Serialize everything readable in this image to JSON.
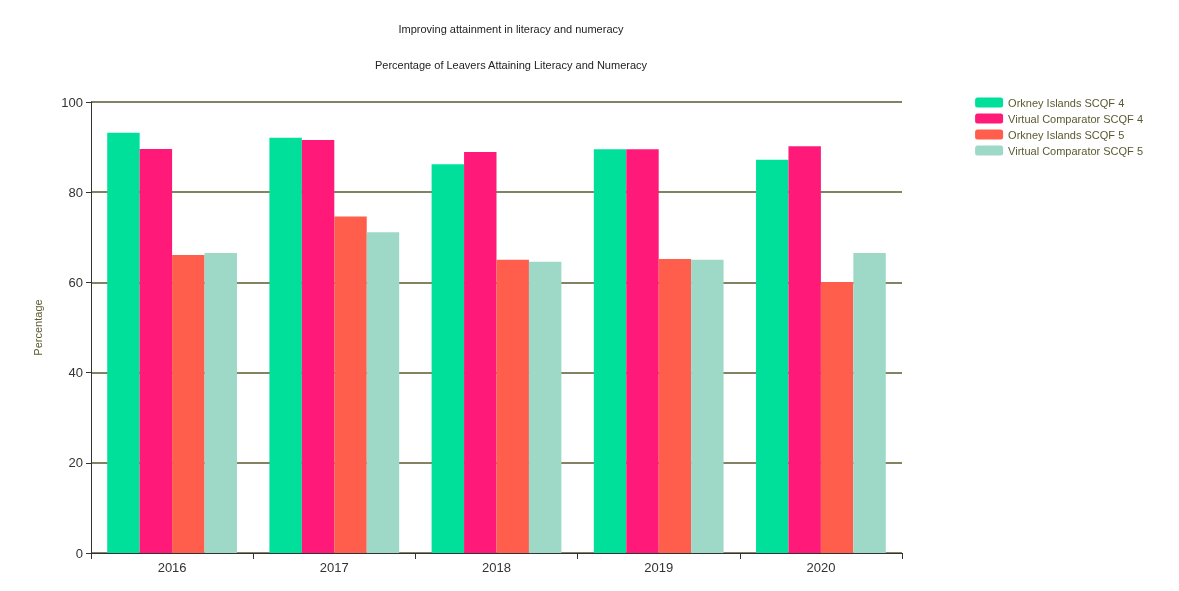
{
  "chart_data": {
    "type": "bar",
    "title": "Improving attainment in literacy and numeracy",
    "subtitle": "Percentage of Leavers Attaining Literacy and Numeracy",
    "ylabel": "Percentage",
    "categories": [
      "2016",
      "2017",
      "2018",
      "2019",
      "2020"
    ],
    "series": [
      {
        "name": "Orkney Islands SCQF 4",
        "color": "#00e09a",
        "values": [
          93.2,
          92.1,
          86.2,
          89.5,
          87.2
        ]
      },
      {
        "name": "Virtual Comparator SCQF 4",
        "color": "#ff1a7a",
        "values": [
          89.6,
          91.6,
          88.9,
          89.5,
          90.2
        ]
      },
      {
        "name": "Orkney Islands SCQF 5",
        "color": "#ff5e4d",
        "values": [
          66.1,
          74.6,
          65.0,
          65.2,
          60.1
        ]
      },
      {
        "name": "Virtual Comparator SCQF 5",
        "color": "#9ed9c8",
        "values": [
          66.5,
          71.1,
          64.6,
          65.0,
          66.5
        ]
      }
    ],
    "ylim": [
      0,
      100
    ],
    "yticks": [
      0,
      20,
      40,
      60,
      80,
      100
    ],
    "grid": "y",
    "legend": "top right"
  }
}
